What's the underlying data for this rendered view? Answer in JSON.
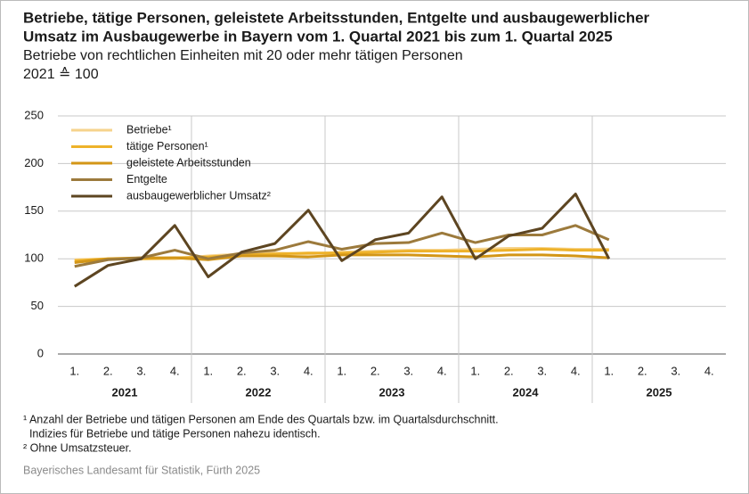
{
  "chart_data": {
    "type": "line",
    "title": [
      "Betriebe, tätige Personen, geleistete Arbeitsstunden, Entgelte und ausbaugewerblicher",
      "Umsatz im Ausbaugewerbe in Bayern vom 1. Quartal 2021 bis zum 1. Quartal 2025"
    ],
    "subtitle": "Betriebe von rechtlichen Einheiten mit 20 oder mehr tätigen Personen",
    "base": "2021 ≙ 100",
    "categories": [
      "1.",
      "2.",
      "3.",
      "4.",
      "1.",
      "2.",
      "3.",
      "4.",
      "1.",
      "2.",
      "3.",
      "4.",
      "1.",
      "2.",
      "3.",
      "4.",
      "1.",
      "2.",
      "3.",
      "4."
    ],
    "years": [
      "2021",
      "2022",
      "2023",
      "2024",
      "2025"
    ],
    "ylim": [
      0,
      250
    ],
    "yticks": [
      0,
      50,
      100,
      150,
      200,
      250
    ],
    "grid": true,
    "series": [
      {
        "name": "Betriebe¹",
        "color": "#f6d38c",
        "values": [
          99,
          100,
          100,
          100,
          103,
          105,
          106,
          105,
          107,
          108,
          109,
          109,
          110,
          111,
          111,
          110,
          110,
          null,
          null,
          null
        ]
      },
      {
        "name": "tätige Personen¹",
        "color": "#eeb22a",
        "values": [
          98,
          100,
          100,
          101,
          102,
          104,
          105,
          106,
          106,
          107,
          108,
          108,
          108,
          109,
          110,
          109,
          109,
          null,
          null,
          null
        ]
      },
      {
        "name": "geleistete Arbeitsstunden",
        "color": "#d39617",
        "values": [
          96,
          100,
          101,
          101,
          99,
          103,
          103,
          102,
          104,
          104,
          104,
          103,
          102,
          104,
          104,
          103,
          101,
          null,
          null,
          null
        ]
      },
      {
        "name": "Entgelte",
        "color": "#9c7a3c",
        "values": [
          92,
          99,
          101,
          109,
          100,
          106,
          109,
          118,
          110,
          116,
          117,
          127,
          117,
          125,
          125,
          135,
          120,
          null,
          null,
          null
        ]
      },
      {
        "name": "ausbaugewerblicher Umsatz²",
        "color": "#5d4521",
        "values": [
          71,
          93,
          100,
          135,
          81,
          107,
          116,
          151,
          98,
          120,
          127,
          165,
          100,
          124,
          132,
          168,
          100,
          null,
          null,
          null
        ]
      }
    ],
    "footnotes": [
      "¹ Anzahl der Betriebe und tätigen Personen am Ende des Quartals bzw. im Quartalsdurchschnitt.",
      "  Indizies für Betriebe und tätige Personen nahezu identisch.",
      "² Ohne Umsatzsteuer."
    ],
    "source": "Bayerisches Landesamt für Statistik, Fürth 2025"
  }
}
